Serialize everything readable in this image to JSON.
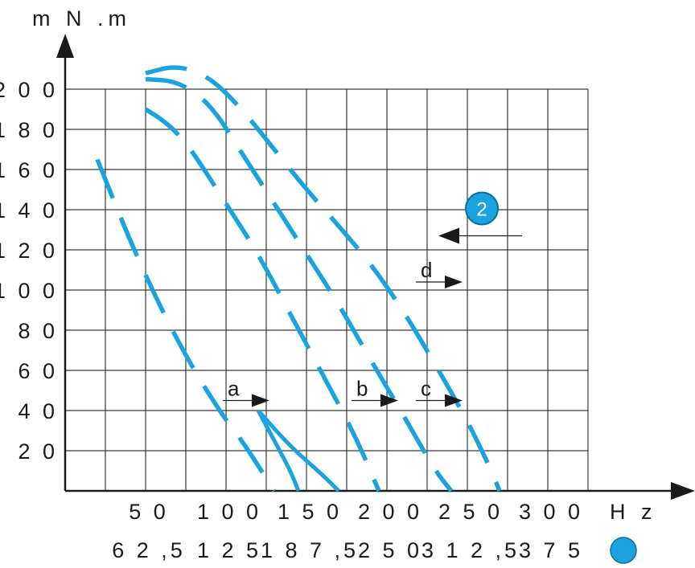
{
  "chart_data": {
    "type": "line",
    "y_axis": {
      "unit_label": "m N .m",
      "ticks": [
        "2 0",
        "4 0",
        "6 0",
        "8 0",
        "1 0 0",
        "1 2 0",
        "1 4 0",
        "1 6 0",
        "1 8 0",
        "2 0 0"
      ],
      "tick_values": [
        20,
        40,
        60,
        80,
        100,
        120,
        140,
        160,
        180,
        200
      ],
      "ylim": [
        0,
        200
      ]
    },
    "x_axis": {
      "unit_label": "H z",
      "ticks": [
        "5 0",
        "1 0 0",
        "1 5 0",
        "2 0 0",
        "2 5 0",
        "3 0 0"
      ],
      "tick_values": [
        50,
        100,
        150,
        200,
        250,
        300
      ],
      "secondary_ticks": [
        "6 2 ,5",
        "1 2 5",
        "1 8 7 ,5",
        "2 5 0",
        "3 1 2 ,5",
        "3 7 5"
      ],
      "xlim": [
        0,
        350
      ]
    },
    "series": [
      {
        "style": "dashed",
        "points": [
          [
            20,
            165
          ],
          [
            40,
            125
          ],
          [
            60,
            90
          ],
          [
            80,
            60
          ],
          [
            100,
            35
          ],
          [
            110,
            25
          ],
          [
            130,
            0
          ]
        ]
      },
      {
        "style": "solid",
        "points": [
          [
            120,
            40
          ],
          [
            140,
            22
          ],
          [
            160,
            8
          ],
          [
            170,
            0
          ]
        ]
      },
      {
        "style": "solid",
        "points": [
          [
            120,
            40
          ],
          [
            130,
            25
          ],
          [
            140,
            10
          ],
          [
            145,
            0
          ]
        ]
      },
      {
        "style": "dashed",
        "points": [
          [
            50,
            190
          ],
          [
            60,
            185
          ],
          [
            70,
            178
          ],
          [
            80,
            168
          ],
          [
            100,
            143
          ],
          [
            120,
            118
          ],
          [
            140,
            88
          ],
          [
            160,
            58
          ],
          [
            180,
            28
          ],
          [
            195,
            0
          ]
        ]
      },
      {
        "style": "dashed",
        "points": [
          [
            50,
            205
          ],
          [
            70,
            204
          ],
          [
            90,
            193
          ],
          [
            110,
            168
          ],
          [
            130,
            143
          ],
          [
            150,
            118
          ],
          [
            170,
            93
          ],
          [
            190,
            65
          ],
          [
            210,
            38
          ],
          [
            230,
            10
          ],
          [
            240,
            0
          ]
        ]
      },
      {
        "style": "dashed",
        "points": [
          [
            50,
            208
          ],
          [
            70,
            212
          ],
          [
            90,
            206
          ],
          [
            110,
            190
          ],
          [
            130,
            170
          ],
          [
            150,
            150
          ],
          [
            170,
            132
          ],
          [
            190,
            113
          ],
          [
            210,
            90
          ],
          [
            230,
            63
          ],
          [
            250,
            35
          ],
          [
            265,
            10
          ],
          [
            270,
            0
          ]
        ]
      }
    ],
    "annotations": [
      {
        "text": "a",
        "arrow_at": [
          127,
          45
        ]
      },
      {
        "text": "b",
        "arrow_at": [
          207,
          45
        ]
      },
      {
        "text": "c",
        "arrow_at": [
          247,
          45
        ]
      },
      {
        "text": "d",
        "arrow_at": [
          247,
          104
        ]
      }
    ],
    "marker": {
      "text": "2",
      "arrow_at": [
        232,
        127
      ]
    },
    "grid": true
  }
}
